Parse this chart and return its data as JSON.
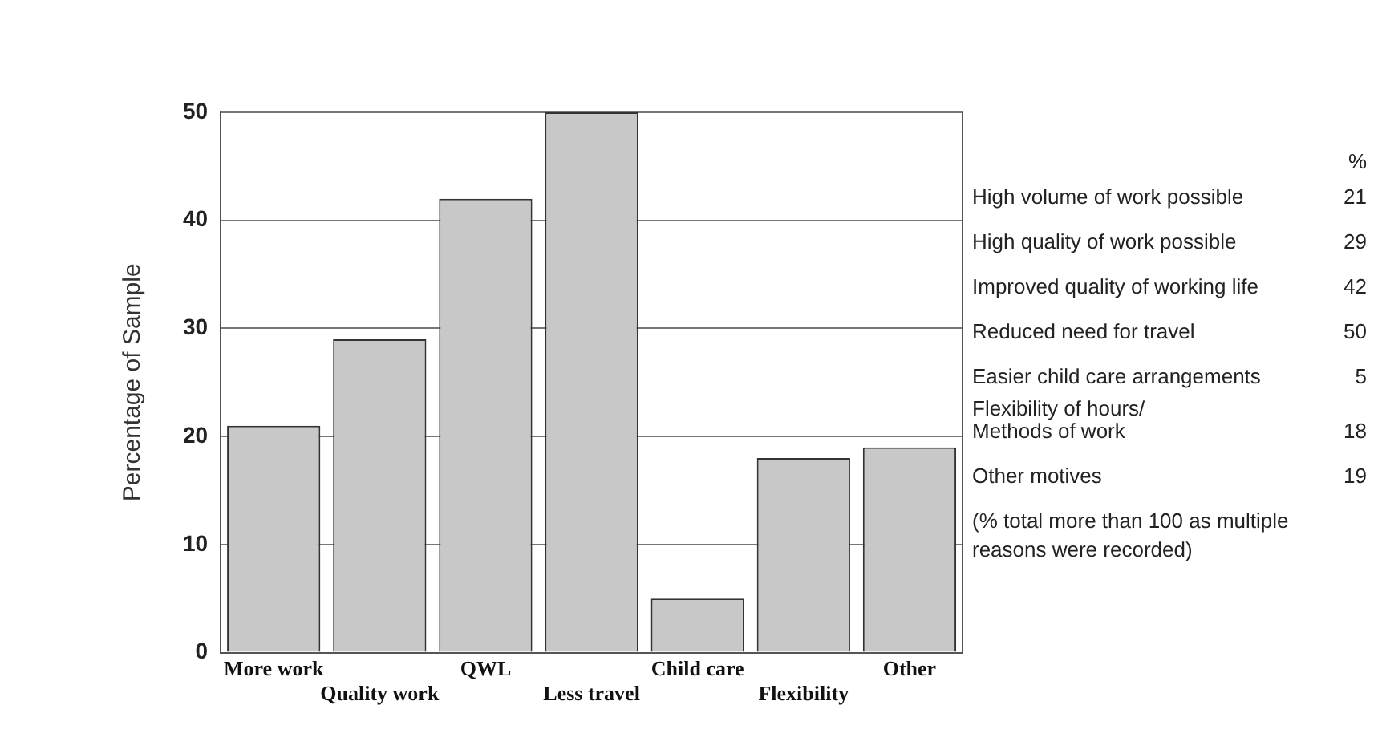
{
  "chart_data": {
    "type": "bar",
    "ylabel": "Percentage of Sample",
    "categories": [
      "More work",
      "Quality work",
      "QWL",
      "Less travel",
      "Child care",
      "Flexibility",
      "Other"
    ],
    "values": [
      21,
      29,
      42,
      50,
      5,
      18,
      19
    ],
    "color": "#c8c8c8",
    "ylim": [
      0,
      50
    ],
    "yticks": [
      0,
      10,
      20,
      30,
      40,
      50
    ],
    "grid": "y",
    "legend": false,
    "annotations": [
      "%",
      "High volume of work possible",
      "21",
      "High quality of work possible",
      "29",
      "Improved quality of working life",
      "42",
      "Reduced need for travel",
      "50",
      "Easier child care arrangements",
      "5",
      "Flexibility of hours/\nMethods of work",
      "18",
      "Other motives",
      "19",
      "(% total more than 100 as multiple reasons were recorded)"
    ]
  }
}
